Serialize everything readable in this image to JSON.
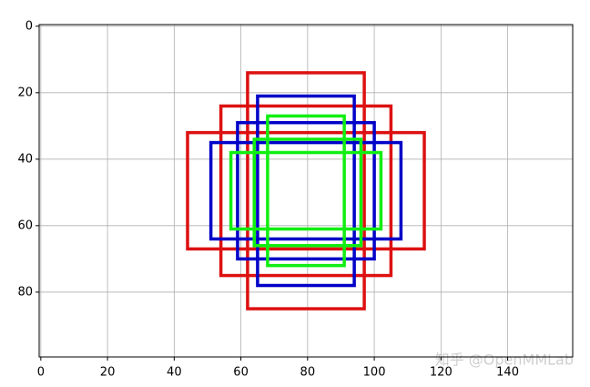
{
  "chart_data": {
    "type": "boxes",
    "xlim": [
      -0.5,
      159.5
    ],
    "ylim": [
      99.5,
      -0.5
    ],
    "xticks": [
      0,
      20,
      40,
      60,
      80,
      100,
      120,
      140
    ],
    "yticks": [
      0,
      20,
      40,
      60,
      80
    ],
    "grid": true,
    "boxes": [
      {
        "color": "#dd1111",
        "x": [
          62,
          97
        ],
        "y": [
          14,
          85
        ]
      },
      {
        "color": "#dd1111",
        "x": [
          54,
          105
        ],
        "y": [
          24,
          75
        ]
      },
      {
        "color": "#dd1111",
        "x": [
          44,
          115
        ],
        "y": [
          32,
          67
        ]
      },
      {
        "color": "#0000c8",
        "x": [
          65,
          94
        ],
        "y": [
          21,
          78
        ]
      },
      {
        "color": "#0000c8",
        "x": [
          59,
          100
        ],
        "y": [
          29,
          70
        ]
      },
      {
        "color": "#0000c8",
        "x": [
          51,
          108
        ],
        "y": [
          35,
          64
        ]
      },
      {
        "color": "#11ee11",
        "x": [
          68,
          91
        ],
        "y": [
          27,
          72
        ]
      },
      {
        "color": "#11ee11",
        "x": [
          64,
          96
        ],
        "y": [
          34,
          66
        ]
      },
      {
        "color": "#11ee11",
        "x": [
          57,
          102
        ],
        "y": [
          38,
          61
        ]
      }
    ],
    "watermark": "知乎 @OpenMMLab"
  }
}
